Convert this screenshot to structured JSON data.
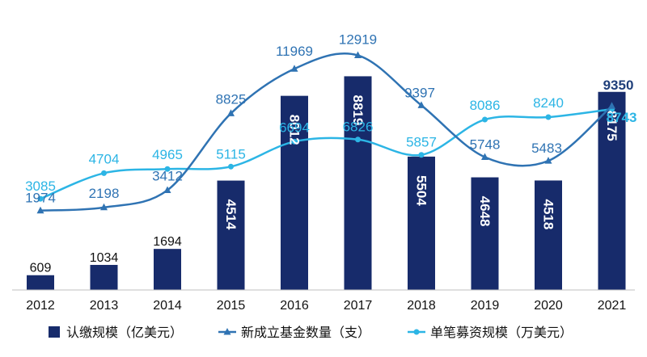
{
  "chart_data": {
    "type": "bar+line",
    "categories": [
      "2012",
      "2013",
      "2014",
      "2015",
      "2016",
      "2017",
      "2018",
      "2019",
      "2020",
      "2021"
    ],
    "series": [
      {
        "name": "认缴规模（亿美元）",
        "kind": "bar",
        "color": "#172b6b",
        "values": [
          609,
          1034,
          1694,
          4514,
          8012,
          8819,
          5504,
          4648,
          4518,
          8175
        ]
      },
      {
        "name": "新成立基金数量（支）",
        "kind": "line",
        "color": "#2f73b3",
        "values": [
          1974,
          2198,
          3412,
          8825,
          11969,
          12919,
          9397,
          5748,
          5483,
          9350
        ]
      },
      {
        "name": "单笔募资规模（万美元）",
        "kind": "line",
        "color": "#2cb5e5",
        "values": [
          3085,
          4704,
          4965,
          5115,
          6694,
          6826,
          5857,
          8086,
          8240,
          8743
        ]
      }
    ],
    "title": "",
    "xlabel": "",
    "ylabel": "",
    "legend_position": "bottom",
    "grid": false
  }
}
